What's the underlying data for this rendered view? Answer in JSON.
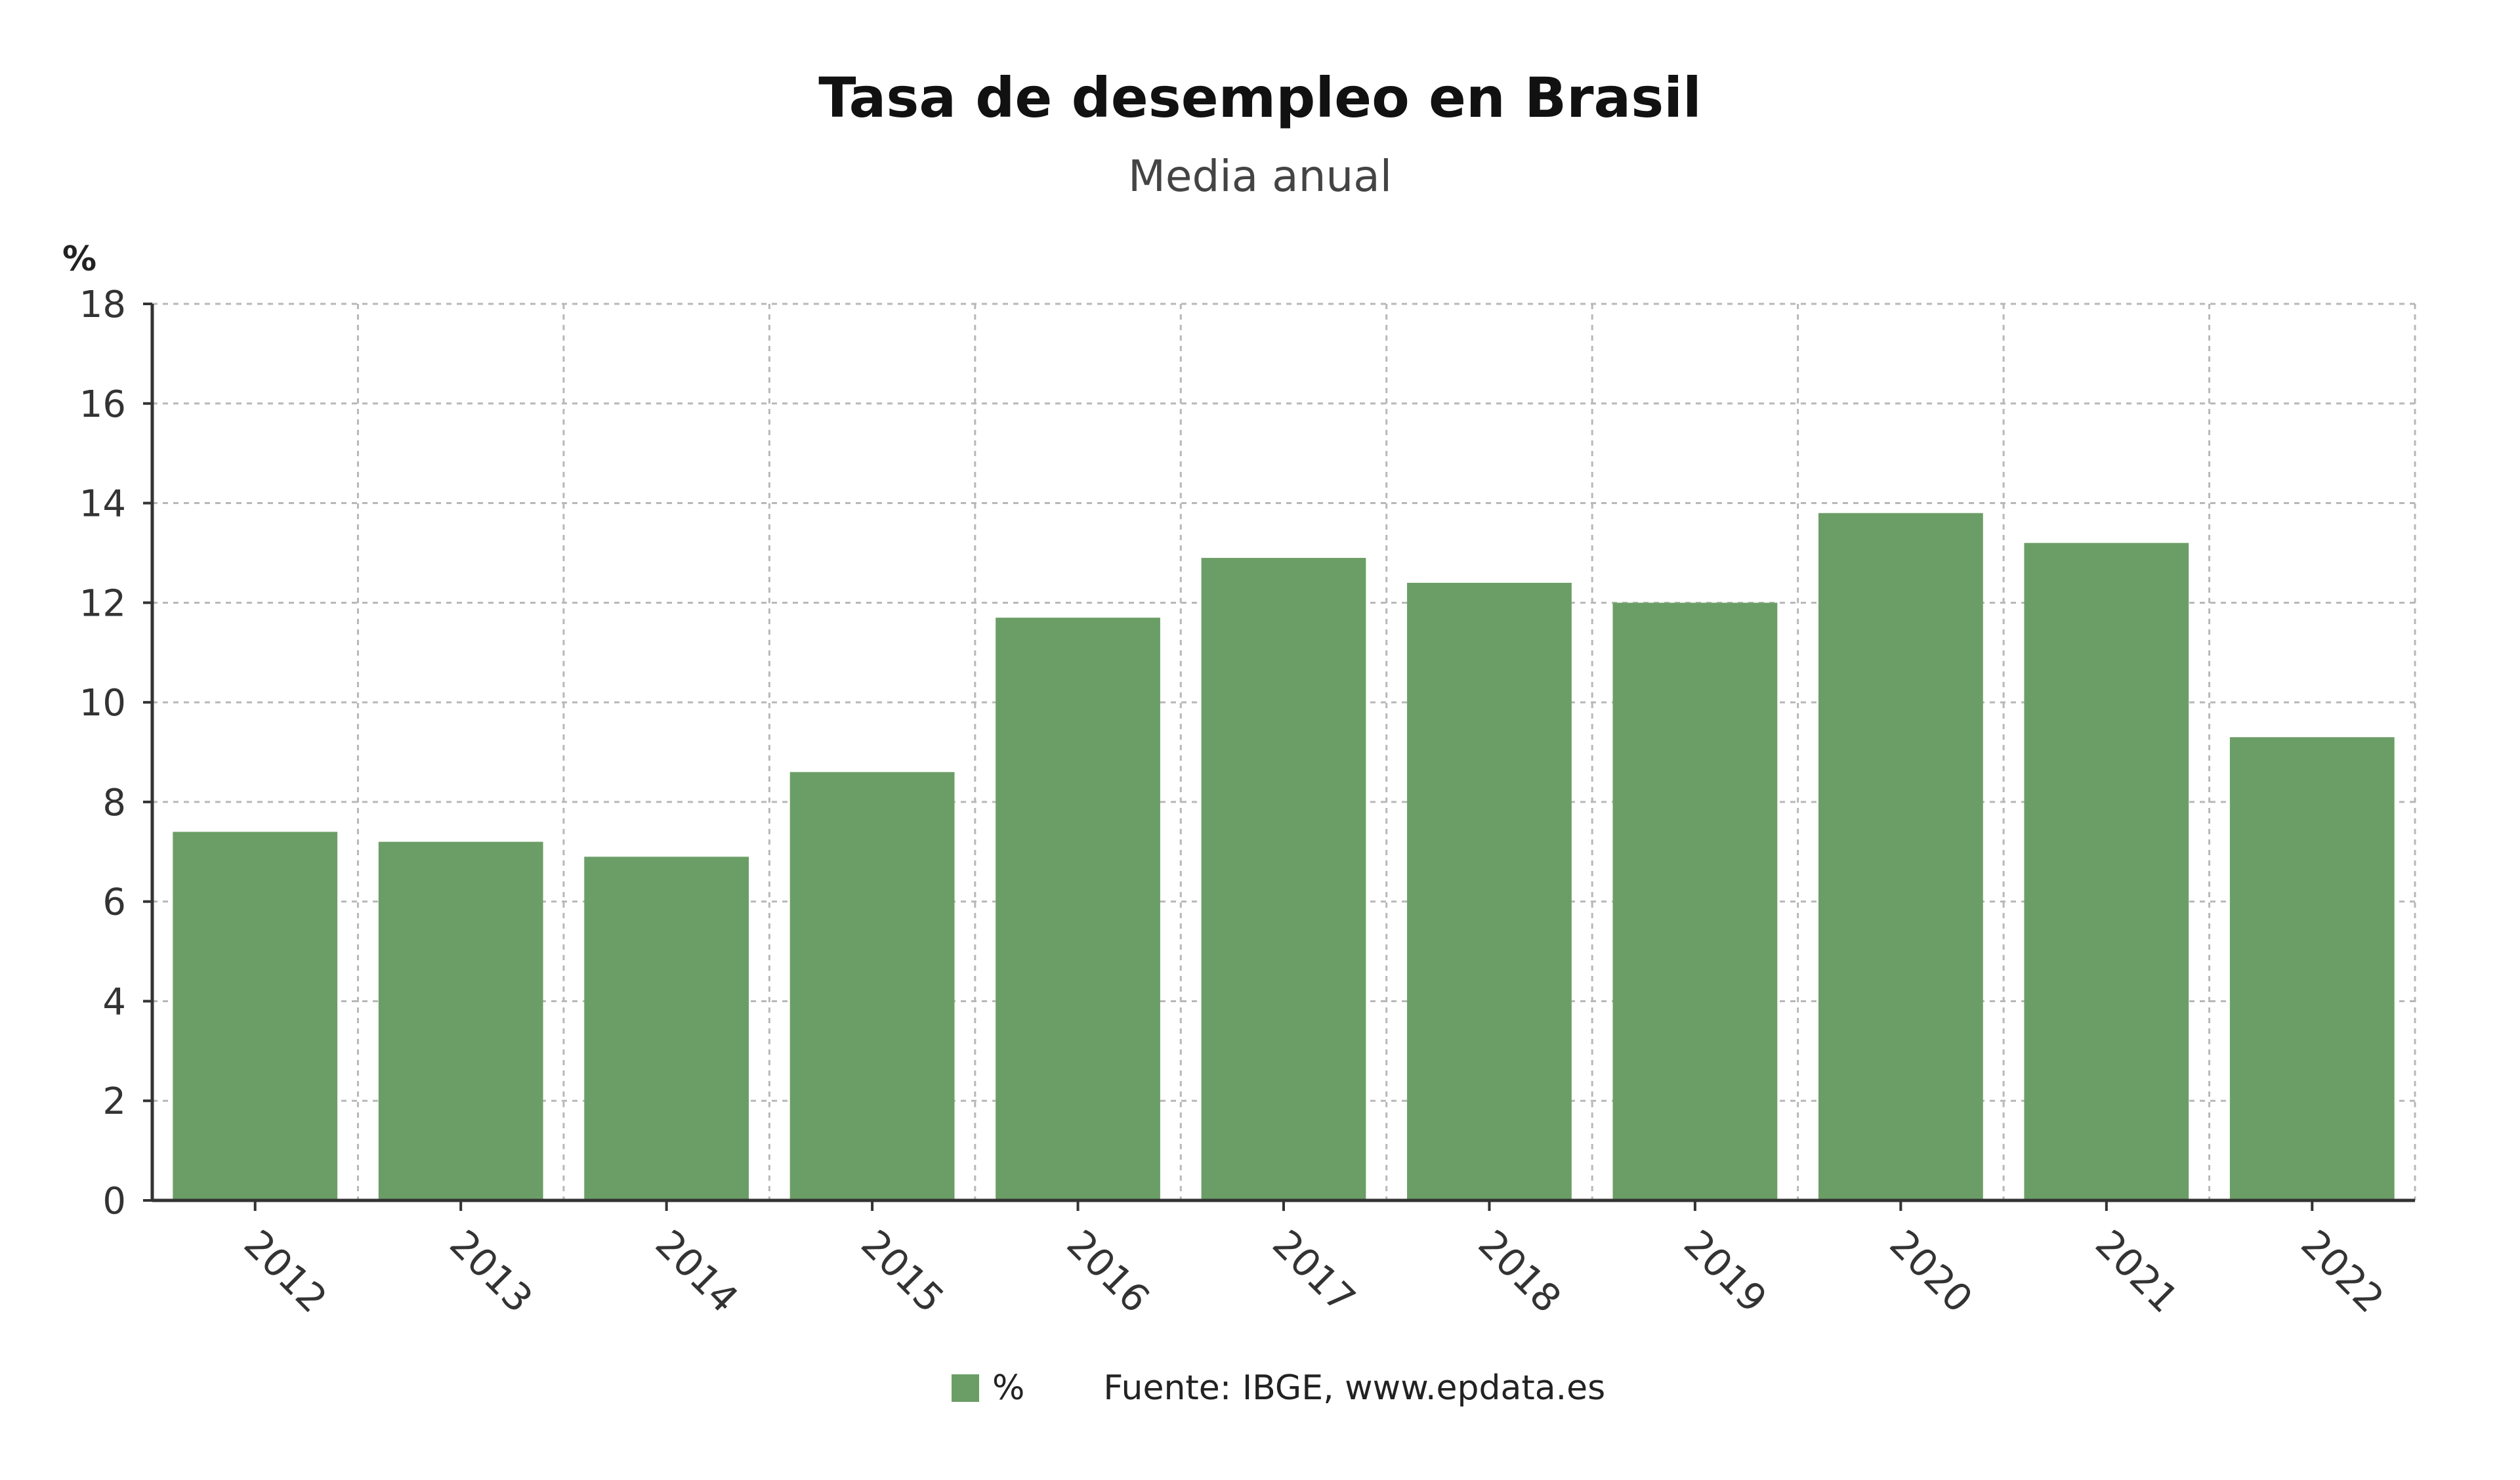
{
  "title": "Tasa de desempleo en Brasil",
  "subtitle": "Media anual",
  "source": "Fuente: IBGE, www.epdata.es",
  "colors": {
    "bar": "#6b9e66",
    "grid": "#b8b8b8",
    "axis": "#333333"
  },
  "chart_data": {
    "type": "bar",
    "title": "Tasa de desempleo en Brasil",
    "subtitle": "Media anual",
    "ylabel": "%",
    "xlabel": "",
    "categories": [
      "2012",
      "2013",
      "2014",
      "2015",
      "2016",
      "2017",
      "2018",
      "2019",
      "2020",
      "2021",
      "2022"
    ],
    "series": [
      {
        "name": "%",
        "values": [
          7.4,
          7.2,
          6.9,
          8.6,
          11.7,
          12.9,
          12.4,
          12.0,
          13.8,
          13.2,
          9.3
        ]
      }
    ],
    "ylim": [
      0,
      18
    ],
    "yticks": [
      0,
      2,
      4,
      6,
      8,
      10,
      12,
      14,
      16,
      18
    ],
    "grid": true,
    "legend": "bottom"
  }
}
